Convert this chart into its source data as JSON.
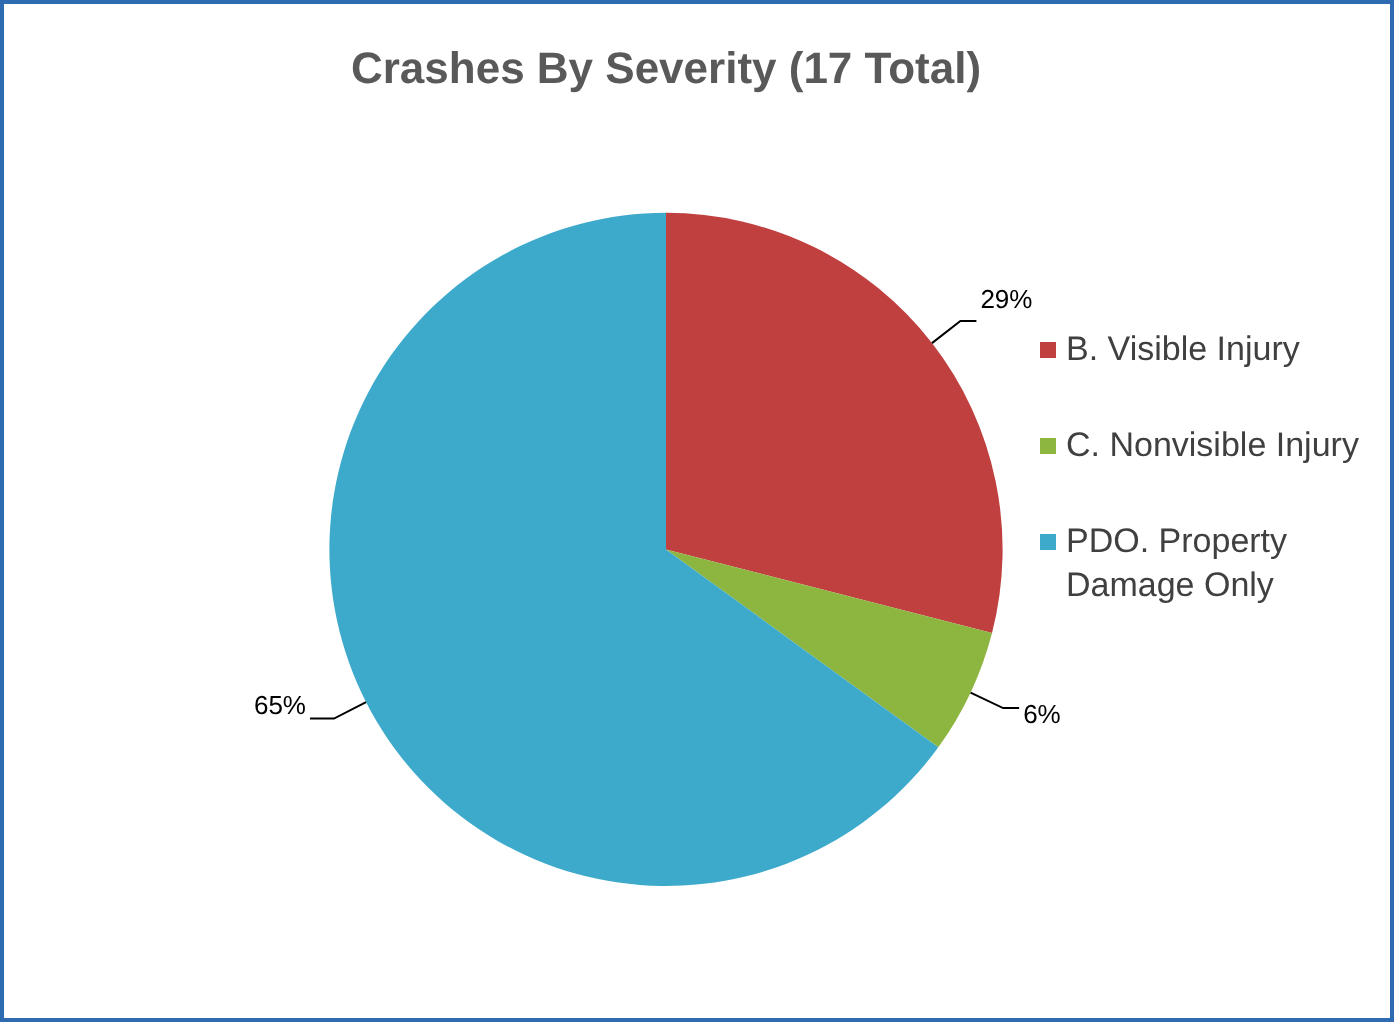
{
  "chart_data": {
    "type": "pie",
    "title": "Crashes By Severity (17 Total)",
    "categories": [
      "B. Visible Injury",
      "C. Nonvisible Injury",
      "PDO. Property Damage Only"
    ],
    "values": [
      29,
      6,
      65
    ],
    "colors": [
      "#c0403f",
      "#8db640",
      "#3eaacb"
    ],
    "value_labels": [
      "29%",
      "6%",
      "65%"
    ],
    "legend": "right"
  }
}
